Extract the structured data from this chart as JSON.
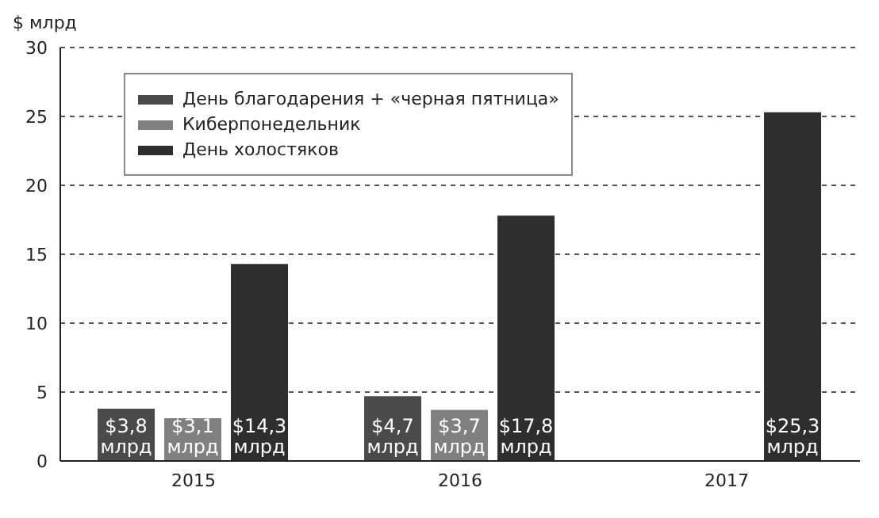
{
  "chart_data": {
    "type": "bar",
    "ylabel": "$ млрд",
    "categories": [
      "2015",
      "2016",
      "2017"
    ],
    "series": [
      {
        "name": "День благодарения + «черная пятница»",
        "color": "#4a4a4a",
        "values": [
          3.8,
          4.7,
          null
        ],
        "value_labels": [
          "$3,8 млрд",
          "$4,7 млрд",
          null
        ]
      },
      {
        "name": "Киберпонедельник",
        "color": "#808080",
        "values": [
          3.1,
          3.7,
          null
        ],
        "value_labels": [
          "$3,1 млрд",
          "$3,7 млрд",
          null
        ]
      },
      {
        "name": "День холостяков",
        "color": "#2e2e2e",
        "values": [
          14.3,
          17.8,
          25.3
        ],
        "value_labels": [
          "$14,3 млрд",
          "$17,8 млрд",
          "$25,3 млрд"
        ]
      }
    ],
    "ylim": [
      0,
      30
    ],
    "yticks": [
      0,
      5,
      10,
      15,
      20,
      25,
      30
    ],
    "grid": "y",
    "legend": "top left"
  }
}
